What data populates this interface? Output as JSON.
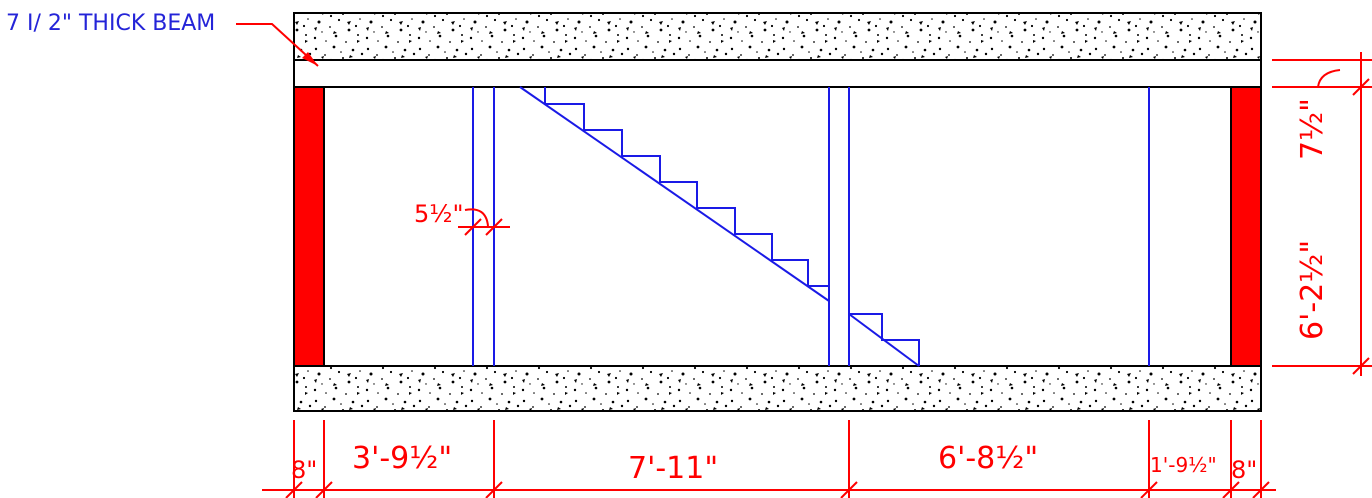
{
  "title_label": "7 I/ 2\" THICK BEAM",
  "colors": {
    "dimension": "#ff0000",
    "framing": "#1a1ae6",
    "outline": "#000000",
    "column_fill": "#ff0000",
    "concrete_speckle": "#000000"
  },
  "icons": {
    "leader": "leader-arrow-icon",
    "tick": "dimension-tick-icon",
    "hatch": "concrete-hatch-pattern"
  },
  "dimensions": {
    "bottom": {
      "left_column": "8\"",
      "left_bay": "3'-9½\"",
      "middle_bay": "7'-11\"",
      "right_bay": "6'-8½\"",
      "right_small_bay": "1'-9½\"",
      "right_column": "8\""
    },
    "right": {
      "beam_depth": "7½\"",
      "clear_height": "6'-2½\""
    },
    "inner": {
      "wall_thickness": "5½\""
    }
  }
}
